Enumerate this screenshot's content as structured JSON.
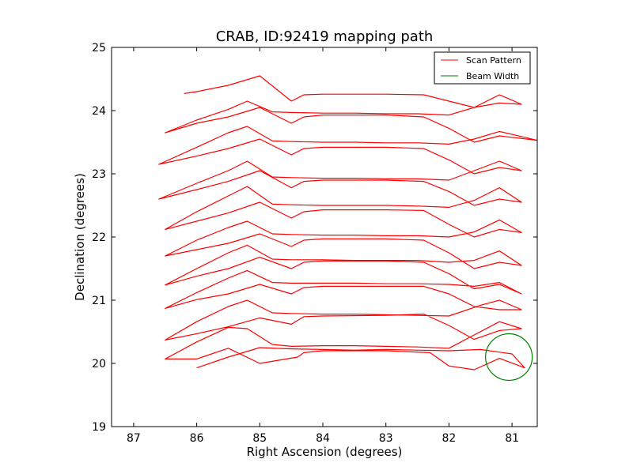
{
  "chart_data": {
    "type": "line",
    "title": "CRAB, ID:92419 mapping path",
    "xlabel": "Right Ascension (degrees)",
    "ylabel": "Declination (degrees)",
    "xlim": [
      87.35,
      80.6
    ],
    "ylim": [
      19,
      25
    ],
    "x_inverted": true,
    "x_ticks": [
      87,
      86,
      85,
      84,
      83,
      82,
      81
    ],
    "y_ticks": [
      19,
      20,
      21,
      22,
      23,
      24,
      25
    ],
    "grid": false,
    "legend_position": "top-right",
    "series": [
      {
        "name": "Scan Pattern",
        "color": "#ff0000",
        "points": [
          [
            86.0,
            19.93
          ],
          [
            85.5,
            20.1
          ],
          [
            85.0,
            20.25
          ],
          [
            84.5,
            20.23
          ],
          [
            84.0,
            20.22
          ],
          [
            83.5,
            20.21
          ],
          [
            83.0,
            20.22
          ],
          [
            82.5,
            20.21
          ],
          [
            82.0,
            20.2
          ],
          [
            81.5,
            20.22
          ],
          [
            81.0,
            20.15
          ],
          [
            80.8,
            19.93
          ],
          [
            81.2,
            20.08
          ],
          [
            81.6,
            19.9
          ],
          [
            82.0,
            19.96
          ],
          [
            82.3,
            20.17
          ],
          [
            83.0,
            20.2
          ],
          [
            84.0,
            20.2
          ],
          [
            84.3,
            20.17
          ],
          [
            84.4,
            20.1
          ],
          [
            84.7,
            20.05
          ],
          [
            85.0,
            20.0
          ],
          [
            85.5,
            20.24
          ],
          [
            86.0,
            20.07
          ],
          [
            86.5,
            20.07
          ],
          [
            86.0,
            20.34
          ],
          [
            85.5,
            20.57
          ],
          [
            85.2,
            20.55
          ],
          [
            84.8,
            20.3
          ],
          [
            84.5,
            20.27
          ],
          [
            84.0,
            20.28
          ],
          [
            83.5,
            20.28
          ],
          [
            83.0,
            20.27
          ],
          [
            82.5,
            20.26
          ],
          [
            82.0,
            20.24
          ],
          [
            81.6,
            20.45
          ],
          [
            81.2,
            20.66
          ],
          [
            80.85,
            20.55
          ],
          [
            81.2,
            20.52
          ],
          [
            81.6,
            20.38
          ],
          [
            82.0,
            20.6
          ],
          [
            82.4,
            20.78
          ],
          [
            83.0,
            20.76
          ],
          [
            84.0,
            20.75
          ],
          [
            84.3,
            20.74
          ],
          [
            84.5,
            20.62
          ],
          [
            85.0,
            20.72
          ],
          [
            85.5,
            20.58
          ],
          [
            86.0,
            20.47
          ],
          [
            86.5,
            20.37
          ],
          [
            86.0,
            20.66
          ],
          [
            85.5,
            20.9
          ],
          [
            85.2,
            21.0
          ],
          [
            84.8,
            20.8
          ],
          [
            84.5,
            20.79
          ],
          [
            84.0,
            20.78
          ],
          [
            83.5,
            20.78
          ],
          [
            83.0,
            20.77
          ],
          [
            82.5,
            20.76
          ],
          [
            82.0,
            20.75
          ],
          [
            81.5,
            20.92
          ],
          [
            81.2,
            21.0
          ],
          [
            80.85,
            20.85
          ],
          [
            81.2,
            20.85
          ],
          [
            81.6,
            20.9
          ],
          [
            82.0,
            21.1
          ],
          [
            82.4,
            21.22
          ],
          [
            83.0,
            21.22
          ],
          [
            84.0,
            21.22
          ],
          [
            84.3,
            21.2
          ],
          [
            84.5,
            21.1
          ],
          [
            85.0,
            21.25
          ],
          [
            85.5,
            21.1
          ],
          [
            86.0,
            21.01
          ],
          [
            86.5,
            20.87
          ],
          [
            86.0,
            21.12
          ],
          [
            85.5,
            21.35
          ],
          [
            85.2,
            21.47
          ],
          [
            84.8,
            21.28
          ],
          [
            84.5,
            21.27
          ],
          [
            84.0,
            21.27
          ],
          [
            83.5,
            21.27
          ],
          [
            83.0,
            21.26
          ],
          [
            82.5,
            21.26
          ],
          [
            82.0,
            21.25
          ],
          [
            81.6,
            21.22
          ],
          [
            81.2,
            21.28
          ],
          [
            80.85,
            21.1
          ],
          [
            81.2,
            21.25
          ],
          [
            81.6,
            21.18
          ],
          [
            82.0,
            21.42
          ],
          [
            82.4,
            21.6
          ],
          [
            83.0,
            21.62
          ],
          [
            84.0,
            21.62
          ],
          [
            84.3,
            21.6
          ],
          [
            84.5,
            21.5
          ],
          [
            85.0,
            21.68
          ],
          [
            85.5,
            21.5
          ],
          [
            86.0,
            21.38
          ],
          [
            86.5,
            21.24
          ],
          [
            86.0,
            21.5
          ],
          [
            85.5,
            21.75
          ],
          [
            85.2,
            21.87
          ],
          [
            84.8,
            21.65
          ],
          [
            84.5,
            21.64
          ],
          [
            84.0,
            21.64
          ],
          [
            83.5,
            21.63
          ],
          [
            83.0,
            21.63
          ],
          [
            82.5,
            21.63
          ],
          [
            82.0,
            21.6
          ],
          [
            81.6,
            21.63
          ],
          [
            81.2,
            21.78
          ],
          [
            80.85,
            21.55
          ],
          [
            81.2,
            21.6
          ],
          [
            81.6,
            21.5
          ],
          [
            82.0,
            21.75
          ],
          [
            82.4,
            21.95
          ],
          [
            83.0,
            21.97
          ],
          [
            84.0,
            21.97
          ],
          [
            84.3,
            21.95
          ],
          [
            84.5,
            21.85
          ],
          [
            85.0,
            22.05
          ],
          [
            85.5,
            21.9
          ],
          [
            86.0,
            21.8
          ],
          [
            86.5,
            21.7
          ],
          [
            86.0,
            21.95
          ],
          [
            85.5,
            22.15
          ],
          [
            85.2,
            22.25
          ],
          [
            84.8,
            22.05
          ],
          [
            84.5,
            22.04
          ],
          [
            84.0,
            22.03
          ],
          [
            83.5,
            22.03
          ],
          [
            83.0,
            22.02
          ],
          [
            82.5,
            22.02
          ],
          [
            82.0,
            22.0
          ],
          [
            81.6,
            22.08
          ],
          [
            81.2,
            22.27
          ],
          [
            80.85,
            22.07
          ],
          [
            81.2,
            22.12
          ],
          [
            81.6,
            22.0
          ],
          [
            82.0,
            22.2
          ],
          [
            82.4,
            22.42
          ],
          [
            83.0,
            22.43
          ],
          [
            84.0,
            22.43
          ],
          [
            84.3,
            22.4
          ],
          [
            84.5,
            22.3
          ],
          [
            85.0,
            22.55
          ],
          [
            85.5,
            22.38
          ],
          [
            86.0,
            22.25
          ],
          [
            86.5,
            22.12
          ],
          [
            86.0,
            22.4
          ],
          [
            85.5,
            22.65
          ],
          [
            85.2,
            22.8
          ],
          [
            84.8,
            22.52
          ],
          [
            84.5,
            22.51
          ],
          [
            84.0,
            22.5
          ],
          [
            83.5,
            22.5
          ],
          [
            83.0,
            22.5
          ],
          [
            82.5,
            22.49
          ],
          [
            82.0,
            22.47
          ],
          [
            81.6,
            22.58
          ],
          [
            81.2,
            22.78
          ],
          [
            80.85,
            22.55
          ],
          [
            81.2,
            22.6
          ],
          [
            81.6,
            22.5
          ],
          [
            82.0,
            22.72
          ],
          [
            82.4,
            22.88
          ],
          [
            83.0,
            22.9
          ],
          [
            84.0,
            22.9
          ],
          [
            84.3,
            22.88
          ],
          [
            84.5,
            22.78
          ],
          [
            85.0,
            23.05
          ],
          [
            85.5,
            22.88
          ],
          [
            86.0,
            22.75
          ],
          [
            86.6,
            22.6
          ],
          [
            86.0,
            22.85
          ],
          [
            85.5,
            23.05
          ],
          [
            85.2,
            23.2
          ],
          [
            84.8,
            22.95
          ],
          [
            84.5,
            22.94
          ],
          [
            84.0,
            22.93
          ],
          [
            83.5,
            22.93
          ],
          [
            83.0,
            22.92
          ],
          [
            82.5,
            22.92
          ],
          [
            82.0,
            22.9
          ],
          [
            81.6,
            23.05
          ],
          [
            81.2,
            23.2
          ],
          [
            80.85,
            23.05
          ],
          [
            81.2,
            23.1
          ],
          [
            81.6,
            23.0
          ],
          [
            82.0,
            23.22
          ],
          [
            82.4,
            23.4
          ],
          [
            83.0,
            23.42
          ],
          [
            84.0,
            23.42
          ],
          [
            84.3,
            23.4
          ],
          [
            84.5,
            23.3
          ],
          [
            85.0,
            23.55
          ],
          [
            85.5,
            23.4
          ],
          [
            86.0,
            23.28
          ],
          [
            86.6,
            23.15
          ],
          [
            86.0,
            23.42
          ],
          [
            85.5,
            23.65
          ],
          [
            85.2,
            23.75
          ],
          [
            84.8,
            23.52
          ],
          [
            84.5,
            23.51
          ],
          [
            84.0,
            23.5
          ],
          [
            83.5,
            23.5
          ],
          [
            83.0,
            23.49
          ],
          [
            82.5,
            23.49
          ],
          [
            82.0,
            23.47
          ],
          [
            81.6,
            23.55
          ],
          [
            81.2,
            23.67
          ],
          [
            80.6,
            23.53
          ],
          [
            81.2,
            23.6
          ],
          [
            81.6,
            23.5
          ],
          [
            82.0,
            23.72
          ],
          [
            82.4,
            23.9
          ],
          [
            83.0,
            23.93
          ],
          [
            84.0,
            23.93
          ],
          [
            84.3,
            23.9
          ],
          [
            84.5,
            23.8
          ],
          [
            85.0,
            24.05
          ],
          [
            85.5,
            23.9
          ],
          [
            86.0,
            23.8
          ],
          [
            86.5,
            23.65
          ],
          [
            86.0,
            23.85
          ],
          [
            85.5,
            24.02
          ],
          [
            85.2,
            24.15
          ],
          [
            84.8,
            23.98
          ],
          [
            84.5,
            23.97
          ],
          [
            84.0,
            23.96
          ],
          [
            83.5,
            23.96
          ],
          [
            83.0,
            23.95
          ],
          [
            82.5,
            23.95
          ],
          [
            82.0,
            23.93
          ],
          [
            81.6,
            24.05
          ],
          [
            81.2,
            24.25
          ],
          [
            80.85,
            24.1
          ],
          [
            81.2,
            24.12
          ],
          [
            81.6,
            24.05
          ],
          [
            82.0,
            24.15
          ],
          [
            82.4,
            24.25
          ],
          [
            83.0,
            24.26
          ],
          [
            84.0,
            24.26
          ],
          [
            84.3,
            24.25
          ],
          [
            84.5,
            24.15
          ],
          [
            85.0,
            24.55
          ],
          [
            85.5,
            24.4
          ],
          [
            86.0,
            24.3
          ],
          [
            86.2,
            24.27
          ]
        ]
      },
      {
        "name": "Beam Width",
        "color": "#008000",
        "shape": "circle",
        "center": [
          81.05,
          20.1
        ],
        "radius_deg": 0.37
      }
    ]
  }
}
